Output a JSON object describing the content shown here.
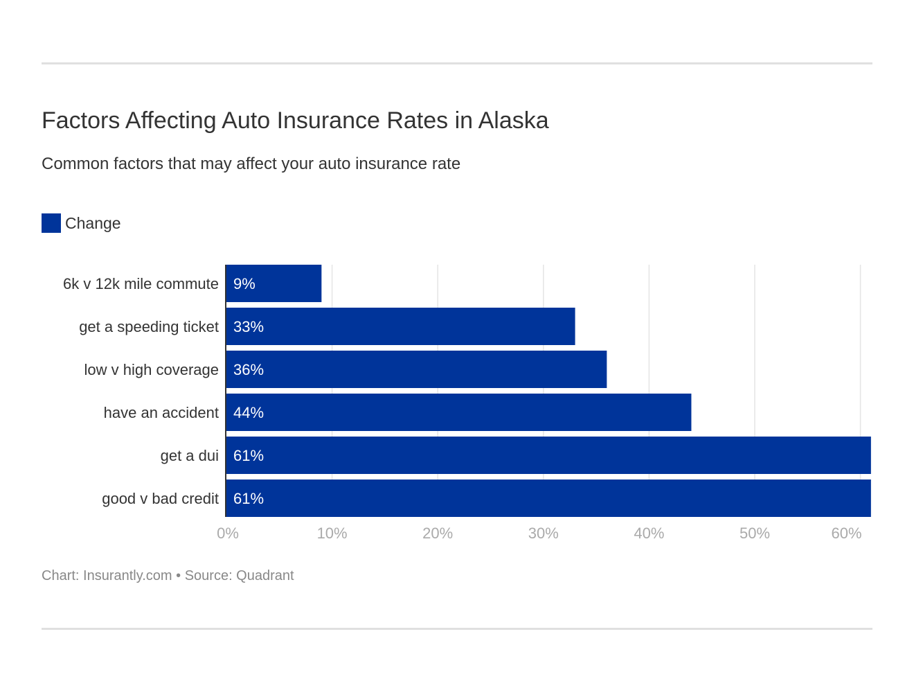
{
  "chart_data": {
    "type": "bar",
    "orientation": "horizontal",
    "title": "Factors Affecting Auto Insurance Rates in Alaska",
    "subtitle": "Common factors that may affect your auto insurance rate",
    "categories": [
      "6k v 12k mile commute",
      "get a speeding ticket",
      "low v high coverage",
      "have an accident",
      "get a dui",
      "good v bad credit"
    ],
    "series": [
      {
        "name": "Change",
        "values": [
          9,
          33,
          36,
          44,
          61,
          61
        ],
        "color": "#00349a"
      }
    ],
    "data_labels": [
      "9%",
      "33%",
      "36%",
      "44%",
      "61%",
      "61%"
    ],
    "xlim": [
      0,
      61
    ],
    "xticks": [
      0,
      10,
      20,
      30,
      40,
      50,
      60
    ],
    "xtick_labels": [
      "0%",
      "10%",
      "20%",
      "30%",
      "40%",
      "50%",
      "60%"
    ],
    "grid": true,
    "legend": "top-left"
  },
  "footer": "Chart: Insurantly.com • Source: Quadrant"
}
